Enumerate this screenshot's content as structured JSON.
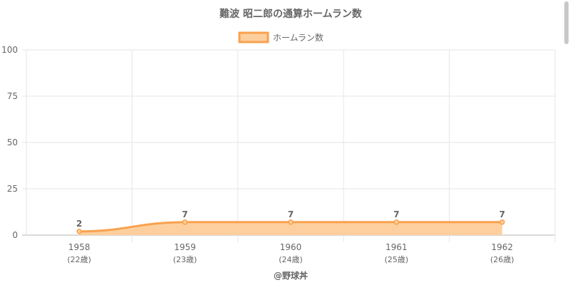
{
  "chart_data": {
    "type": "area",
    "title": "難波 昭二郎の通算ホームラン数",
    "categories": [
      "1958",
      "1959",
      "1960",
      "1961",
      "1962"
    ],
    "sublabels": [
      "(22歳)",
      "(23歳)",
      "(24歳)",
      "(25歳)",
      "(26歳)"
    ],
    "series": [
      {
        "name": "ホームラン数",
        "values": [
          2,
          7,
          7,
          7,
          7
        ]
      }
    ],
    "ylim": [
      0,
      100
    ],
    "yticks": [
      0,
      25,
      50,
      75,
      100
    ],
    "grid": true,
    "legend": "top-center",
    "colors": {
      "line": "#f9a14e",
      "fill": "#fdcf9e",
      "grid": "#e6e6e6",
      "axis": "#b4b4b4",
      "text": "#666666"
    }
  },
  "footer": {
    "credit": "@野球丼"
  }
}
